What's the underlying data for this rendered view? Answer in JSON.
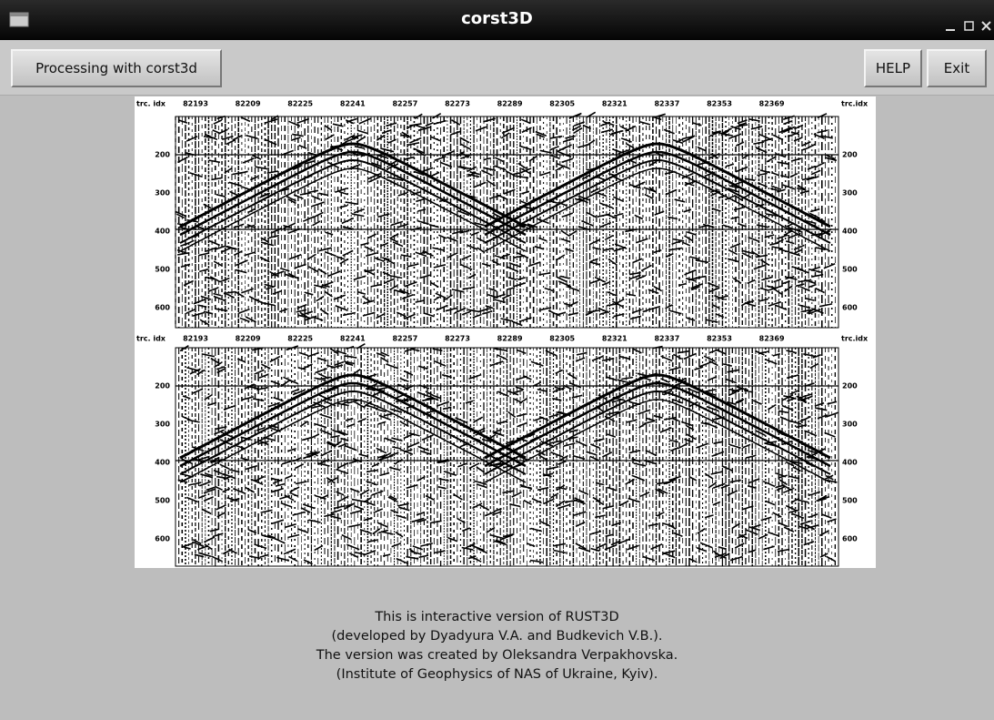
{
  "window": {
    "title": "corst3D"
  },
  "toolbar": {
    "buttons": [
      "Processing with corst3d",
      "HELP",
      "Exit"
    ]
  },
  "seismic_panels": [
    {
      "left_header": "trc. idx",
      "right_header": "trc.idx",
      "x_ticks": [
        82193,
        82209,
        82225,
        82241,
        82257,
        82273,
        82289,
        82305,
        82321,
        82337,
        82353,
        82369
      ],
      "y_ticks": [
        200,
        300,
        400,
        500,
        600
      ]
    },
    {
      "left_header": "trc. idx",
      "right_header": "trc.idx",
      "x_ticks": [
        82193,
        82209,
        82225,
        82241,
        82257,
        82273,
        82289,
        82305,
        82321,
        82337,
        82353,
        82369
      ],
      "y_ticks": [
        200,
        300,
        400,
        500,
        600
      ]
    }
  ],
  "footer": {
    "lines": [
      "This is interactive version of RUST3D",
      "(developed by Dyadyura V.A. and Budkevich V.B.).",
      "The version was created by Oleksandra Verpakhovska.",
      "(Institute of Geophysics of NAS of Ukraine, Kyiv)."
    ]
  }
}
